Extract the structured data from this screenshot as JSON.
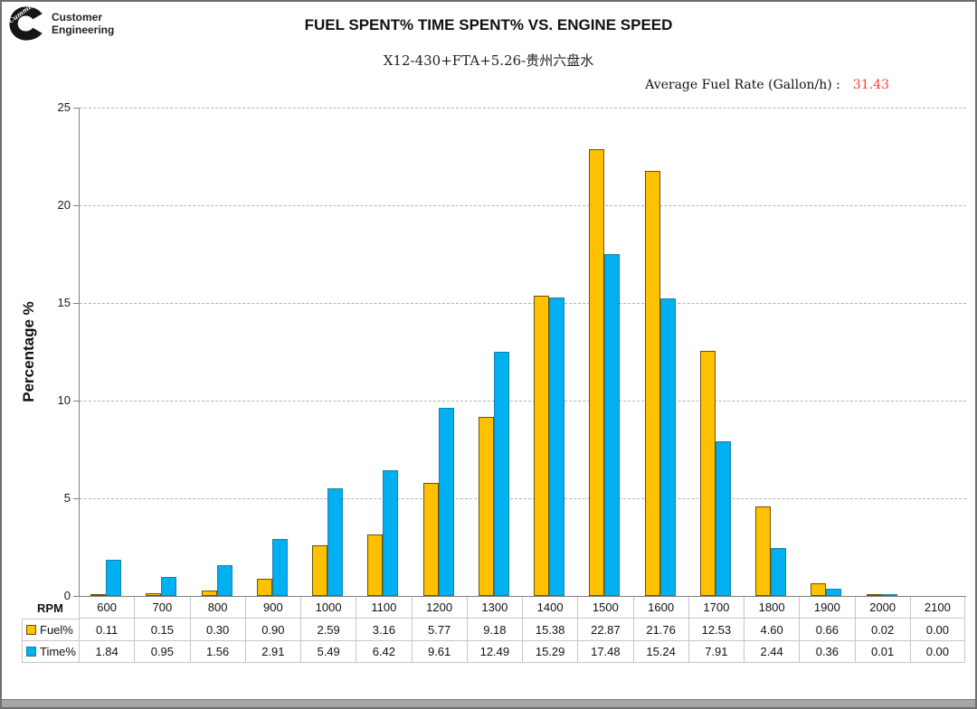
{
  "header": {
    "logo": {
      "brand_script": "Cummins",
      "line1": "Customer",
      "line2": "Engineering"
    },
    "title": "FUEL SPENT% TIME SPENT% VS. ENGINE SPEED",
    "subtitle": "X12-430+FTA+5.26-贵州六盘水",
    "average_fuel_rate": {
      "label": "Average Fuel Rate (Gallon/h) :",
      "value": "31.43",
      "value_color": "#ff3b3b"
    }
  },
  "chart_data": {
    "type": "bar",
    "title": "FUEL SPENT% TIME SPENT% VS. ENGINE SPEED",
    "xlabel": "RPM",
    "ylabel": "Percentage %",
    "ylim": [
      0,
      25
    ],
    "yticks": [
      0,
      5,
      10,
      15,
      20,
      25
    ],
    "grid": "horizontal-dashed",
    "legend_position": "table-rows-left",
    "categories": [
      600,
      700,
      800,
      900,
      1000,
      1100,
      1200,
      1300,
      1400,
      1500,
      1600,
      1700,
      1800,
      1900,
      2000,
      2100
    ],
    "series": [
      {
        "name": "Fuel%",
        "color": "#FFC000",
        "border_color": "#6b5200",
        "values": [
          0.11,
          0.15,
          0.3,
          0.9,
          2.59,
          3.16,
          5.77,
          9.18,
          15.38,
          22.87,
          21.76,
          12.53,
          4.6,
          0.66,
          0.02,
          0.0
        ]
      },
      {
        "name": "Time%",
        "color": "#00B0F0",
        "border_color": "#1c7fa8",
        "values": [
          1.84,
          0.95,
          1.56,
          2.91,
          5.49,
          6.42,
          9.61,
          12.49,
          15.29,
          17.48,
          15.24,
          7.91,
          2.44,
          0.36,
          0.01,
          0.0
        ]
      }
    ]
  },
  "table": {
    "corner_label": "RPM",
    "columns": [
      "600",
      "700",
      "800",
      "900",
      "1000",
      "1100",
      "1200",
      "1300",
      "1400",
      "1500",
      "1600",
      "1700",
      "1800",
      "1900",
      "2000",
      "2100"
    ],
    "rows": [
      {
        "label": "Fuel%",
        "marker_color": "#FFC000",
        "marker_border": "#6b5200",
        "values": [
          "0.11",
          "0.15",
          "0.30",
          "0.90",
          "2.59",
          "3.16",
          "5.77",
          "9.18",
          "15.38",
          "22.87",
          "21.76",
          "12.53",
          "4.60",
          "0.66",
          "0.02",
          "0.00"
        ]
      },
      {
        "label": "Time%",
        "marker_color": "#00B0F0",
        "marker_border": "#1c7fa8",
        "values": [
          "1.84",
          "0.95",
          "1.56",
          "2.91",
          "5.49",
          "6.42",
          "9.61",
          "12.49",
          "15.29",
          "17.48",
          "15.24",
          "7.91",
          "2.44",
          "0.36",
          "0.01",
          "0.00"
        ]
      }
    ]
  }
}
